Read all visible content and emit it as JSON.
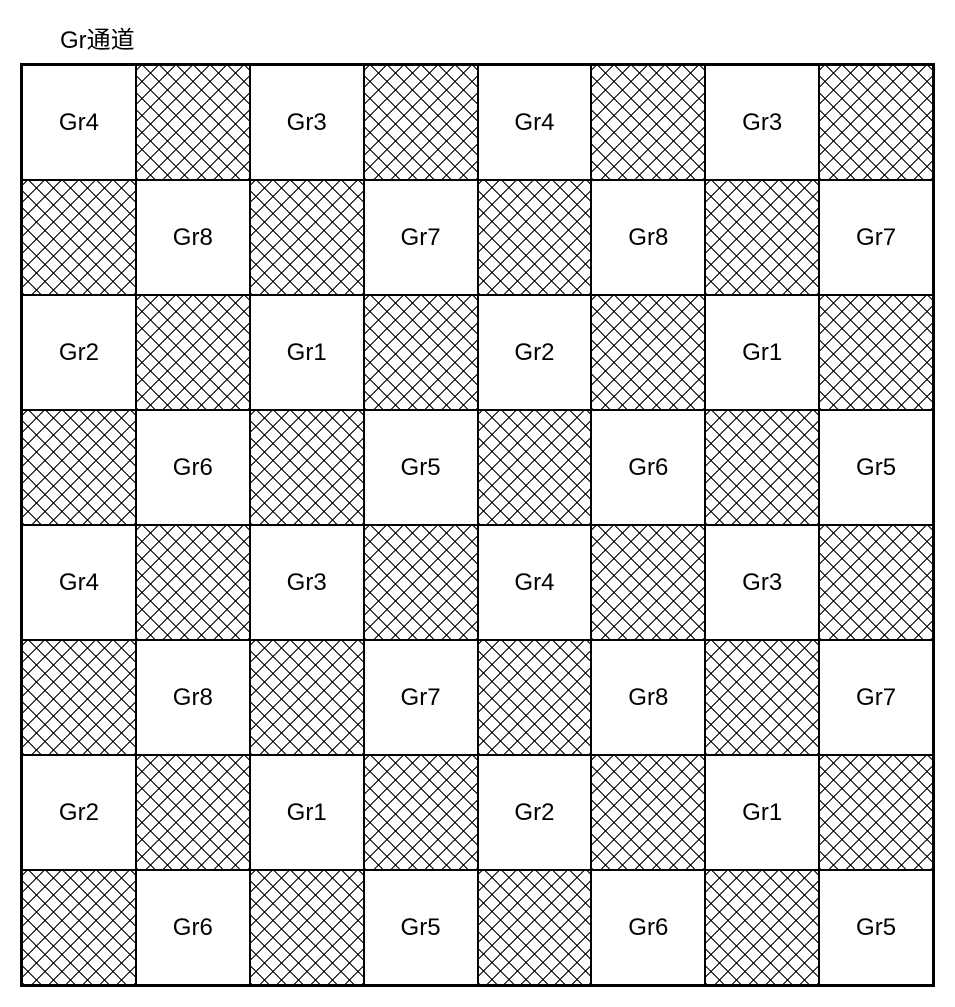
{
  "title": "Gr通道",
  "grid": {
    "rows": 8,
    "cols": 8,
    "cell_border_color": "#000000",
    "background_color": "#ffffff",
    "hatch_color": "#000000",
    "font_size": 24,
    "cells": [
      [
        {
          "label": "Gr4",
          "hatched": false
        },
        {
          "label": "",
          "hatched": true
        },
        {
          "label": "Gr3",
          "hatched": false
        },
        {
          "label": "",
          "hatched": true
        },
        {
          "label": "Gr4",
          "hatched": false
        },
        {
          "label": "",
          "hatched": true
        },
        {
          "label": "Gr3",
          "hatched": false
        },
        {
          "label": "",
          "hatched": true
        }
      ],
      [
        {
          "label": "",
          "hatched": true
        },
        {
          "label": "Gr8",
          "hatched": false
        },
        {
          "label": "",
          "hatched": true
        },
        {
          "label": "Gr7",
          "hatched": false
        },
        {
          "label": "",
          "hatched": true
        },
        {
          "label": "Gr8",
          "hatched": false
        },
        {
          "label": "",
          "hatched": true
        },
        {
          "label": "Gr7",
          "hatched": false
        }
      ],
      [
        {
          "label": "Gr2",
          "hatched": false
        },
        {
          "label": "",
          "hatched": true
        },
        {
          "label": "Gr1",
          "hatched": false
        },
        {
          "label": "",
          "hatched": true
        },
        {
          "label": "Gr2",
          "hatched": false
        },
        {
          "label": "",
          "hatched": true
        },
        {
          "label": "Gr1",
          "hatched": false
        },
        {
          "label": "",
          "hatched": true
        }
      ],
      [
        {
          "label": "",
          "hatched": true
        },
        {
          "label": "Gr6",
          "hatched": false
        },
        {
          "label": "",
          "hatched": true
        },
        {
          "label": "Gr5",
          "hatched": false
        },
        {
          "label": "",
          "hatched": true
        },
        {
          "label": "Gr6",
          "hatched": false
        },
        {
          "label": "",
          "hatched": true
        },
        {
          "label": "Gr5",
          "hatched": false
        }
      ],
      [
        {
          "label": "Gr4",
          "hatched": false
        },
        {
          "label": "",
          "hatched": true
        },
        {
          "label": "Gr3",
          "hatched": false
        },
        {
          "label": "",
          "hatched": true
        },
        {
          "label": "Gr4",
          "hatched": false
        },
        {
          "label": "",
          "hatched": true
        },
        {
          "label": "Gr3",
          "hatched": false
        },
        {
          "label": "",
          "hatched": true
        }
      ],
      [
        {
          "label": "",
          "hatched": true
        },
        {
          "label": "Gr8",
          "hatched": false
        },
        {
          "label": "",
          "hatched": true
        },
        {
          "label": "Gr7",
          "hatched": false
        },
        {
          "label": "",
          "hatched": true
        },
        {
          "label": "Gr8",
          "hatched": false
        },
        {
          "label": "",
          "hatched": true
        },
        {
          "label": "Gr7",
          "hatched": false
        }
      ],
      [
        {
          "label": "Gr2",
          "hatched": false
        },
        {
          "label": "",
          "hatched": true
        },
        {
          "label": "Gr1",
          "hatched": false
        },
        {
          "label": "",
          "hatched": true
        },
        {
          "label": "Gr2",
          "hatched": false
        },
        {
          "label": "",
          "hatched": true
        },
        {
          "label": "Gr1",
          "hatched": false
        },
        {
          "label": "",
          "hatched": true
        }
      ],
      [
        {
          "label": "",
          "hatched": true
        },
        {
          "label": "Gr6",
          "hatched": false
        },
        {
          "label": "",
          "hatched": true
        },
        {
          "label": "Gr5",
          "hatched": false
        },
        {
          "label": "",
          "hatched": true
        },
        {
          "label": "Gr6",
          "hatched": false
        },
        {
          "label": "",
          "hatched": true
        },
        {
          "label": "Gr5",
          "hatched": false
        }
      ]
    ]
  }
}
